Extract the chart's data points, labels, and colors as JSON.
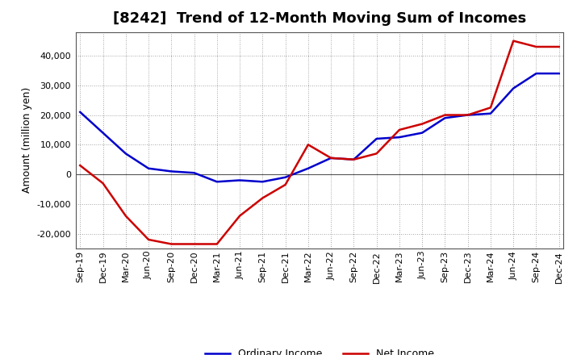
{
  "title": "[8242]  Trend of 12-Month Moving Sum of Incomes",
  "ylabel": "Amount (million yen)",
  "background_color": "#ffffff",
  "plot_bg_color": "#ffffff",
  "grid_color": "#888888",
  "x_labels": [
    "Sep-19",
    "Dec-19",
    "Mar-20",
    "Jun-20",
    "Sep-20",
    "Dec-20",
    "Mar-21",
    "Jun-21",
    "Sep-21",
    "Dec-21",
    "Mar-22",
    "Jun-22",
    "Sep-22",
    "Dec-22",
    "Mar-23",
    "Jun-23",
    "Sep-23",
    "Dec-23",
    "Mar-24",
    "Jun-24",
    "Sep-24",
    "Dec-24"
  ],
  "ordinary_income": [
    21000,
    14000,
    7000,
    2000,
    1000,
    500,
    -2500,
    -2000,
    -2500,
    -1000,
    2000,
    5500,
    5000,
    12000,
    12500,
    14000,
    19000,
    20000,
    20500,
    29000,
    34000,
    34000
  ],
  "net_income": [
    3000,
    -3000,
    -14000,
    -22000,
    -23500,
    -23500,
    -23500,
    -14000,
    -8000,
    -3500,
    10000,
    5500,
    5000,
    7000,
    15000,
    17000,
    20000,
    20000,
    22500,
    45000,
    43000,
    43000
  ],
  "ordinary_color": "#0000cc",
  "net_color": "#cc0000",
  "ylim": [
    -25000,
    48000
  ],
  "yticks": [
    -20000,
    -10000,
    0,
    10000,
    20000,
    30000,
    40000
  ],
  "line_width": 1.8,
  "title_fontsize": 13,
  "tick_fontsize": 8,
  "ylabel_fontsize": 9,
  "legend_fontsize": 9
}
